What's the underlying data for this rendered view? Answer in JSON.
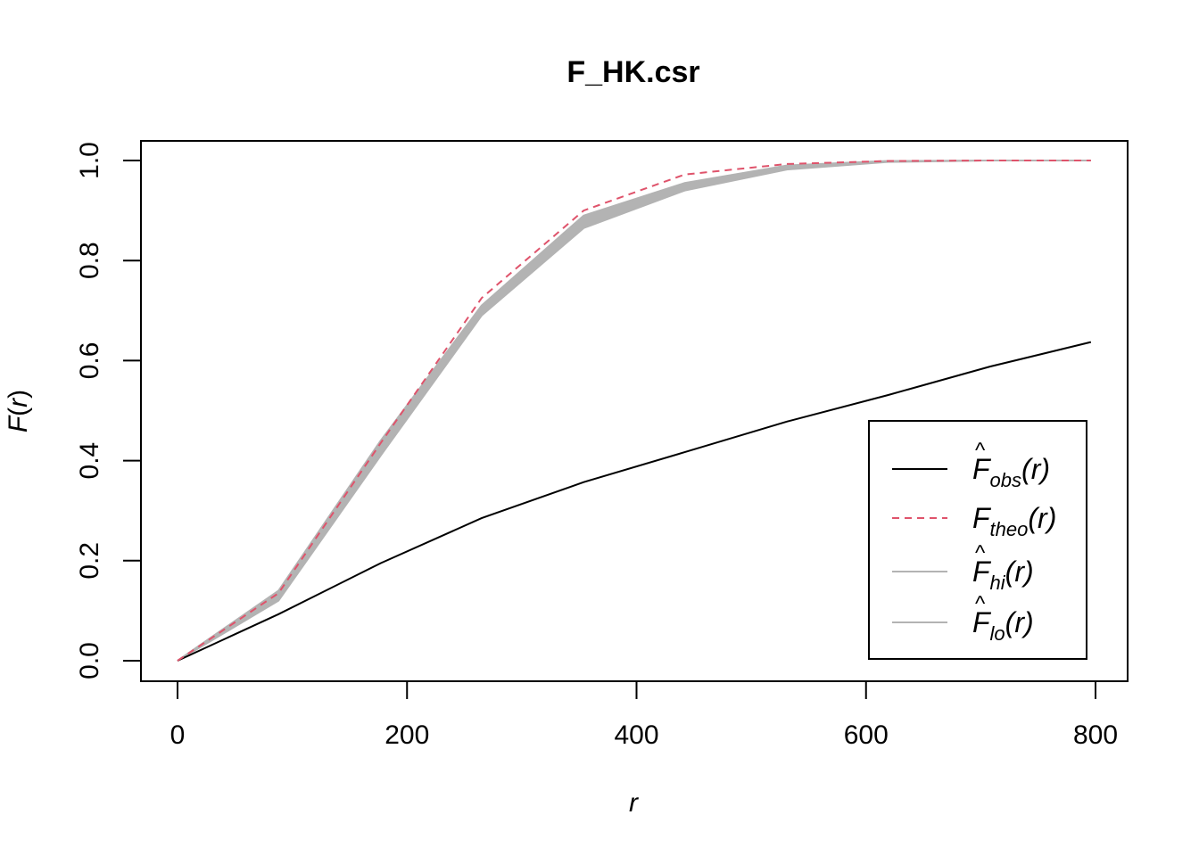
{
  "chart_data": {
    "type": "line",
    "title": "F_HK.csr",
    "xlabel": "r",
    "ylabel_main": "F",
    "ylabel_arg": "r",
    "xlim": [
      0,
      800
    ],
    "ylim": [
      0,
      1
    ],
    "x_ticks": [
      0,
      200,
      400,
      600,
      800
    ],
    "x_tick_labels": [
      "0",
      "200",
      "400",
      "600",
      "800"
    ],
    "y_ticks": [
      0,
      0.2,
      0.4,
      0.6,
      0.8,
      1.0
    ],
    "y_tick_labels": [
      "0.0",
      "0.2",
      "0.4",
      "0.6",
      "0.8",
      "1.0"
    ],
    "grid": false,
    "legend_position": "bottom-right",
    "x": [
      0,
      88,
      177,
      265,
      354,
      442,
      531,
      619,
      708,
      796
    ],
    "band": {
      "color": "#b3b3b3",
      "hi": [
        0,
        0.14,
        0.44,
        0.71,
        0.89,
        0.955,
        0.99,
        0.999,
        1.0,
        1.0
      ],
      "lo": [
        0,
        0.12,
        0.41,
        0.69,
        0.865,
        0.94,
        0.982,
        0.997,
        1.0,
        1.0
      ]
    },
    "series": [
      {
        "key": "obs",
        "color": "#000000",
        "dash": "",
        "values": [
          0,
          0.093,
          0.195,
          0.285,
          0.357,
          0.417,
          0.478,
          0.531,
          0.588,
          0.637
        ]
      },
      {
        "key": "theo",
        "color": "#DF536B",
        "dash": "8,6",
        "values": [
          0,
          0.135,
          0.435,
          0.725,
          0.9,
          0.972,
          0.993,
          0.999,
          1.0,
          1.0
        ]
      }
    ],
    "legend": [
      {
        "main": "F",
        "hat": true,
        "sub": "obs",
        "arg": "(r)",
        "color": "#000000",
        "dash": "",
        "width": 2
      },
      {
        "main": "F",
        "hat": false,
        "sub": "theo",
        "arg": "(r)",
        "color": "#DF536B",
        "dash": "8,6",
        "width": 2
      },
      {
        "main": "F",
        "hat": true,
        "sub": "hi",
        "arg": "(r)",
        "color": "#b3b3b3",
        "dash": "",
        "width": 2
      },
      {
        "main": "F",
        "hat": true,
        "sub": "lo",
        "arg": "(r)",
        "color": "#b3b3b3",
        "dash": "",
        "width": 2
      }
    ]
  }
}
